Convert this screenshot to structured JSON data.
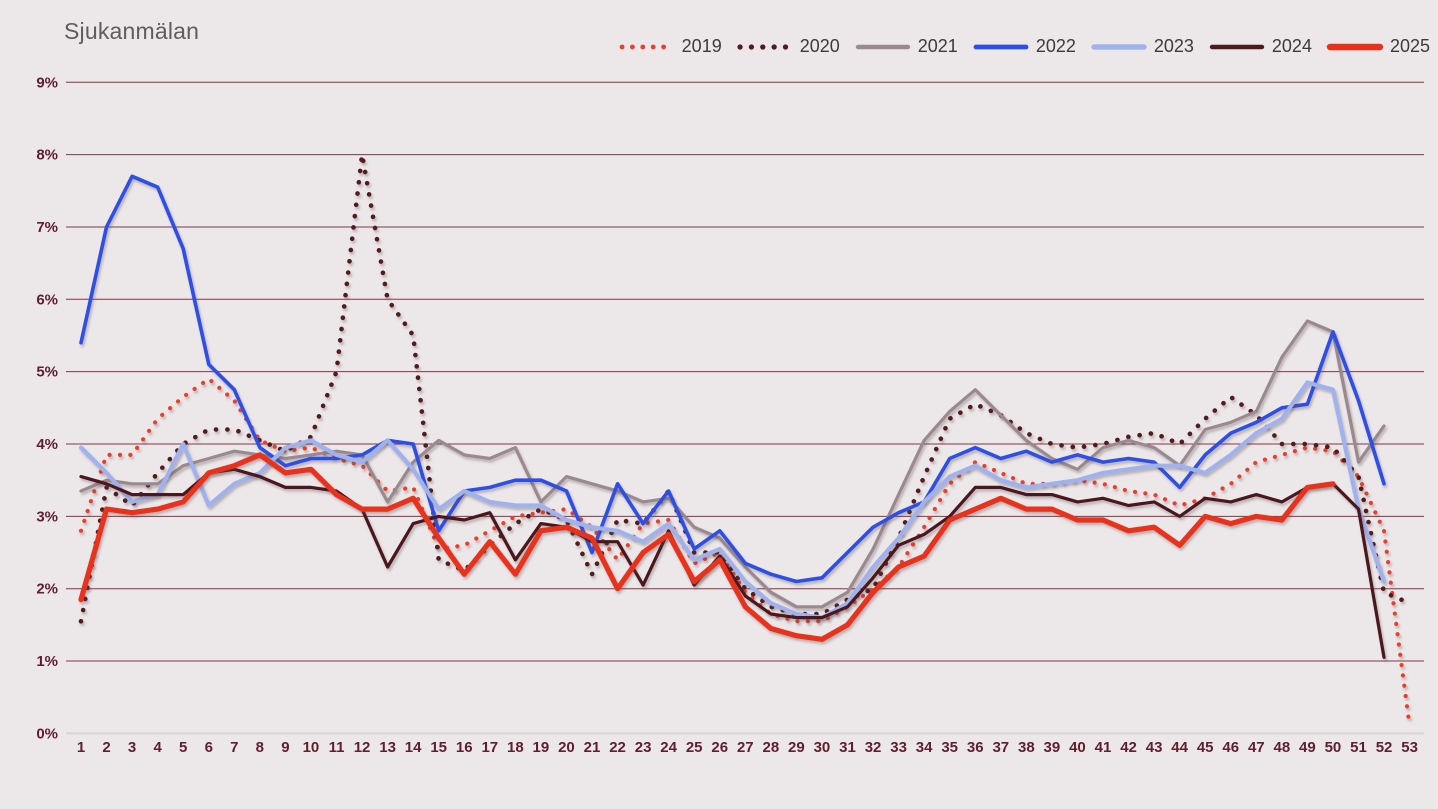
{
  "title": "Sjukanmälan",
  "legend": [
    {
      "label": "2019",
      "color": "#e8402f",
      "style": "dotted",
      "width": 4.2
    },
    {
      "label": "2020",
      "color": "#531a1f",
      "style": "dotted",
      "width": 4.6
    },
    {
      "label": "2021",
      "color": "#9a8a90",
      "style": "solid",
      "width": 3.2
    },
    {
      "label": "2022",
      "color": "#2e4fe6",
      "style": "solid",
      "width": 3.6
    },
    {
      "label": "2023",
      "color": "#a0b2ee",
      "style": "solid",
      "width": 4.2
    },
    {
      "label": "2024",
      "color": "#4c191d",
      "style": "solid",
      "width": 3.2
    },
    {
      "label": "2025",
      "color": "#e8311c",
      "style": "solid",
      "width": 5.2
    }
  ],
  "chart_data": {
    "type": "line",
    "title": "Sjukanmälan",
    "xlabel": "",
    "ylabel": "",
    "grid": true,
    "legend_position": "top-right",
    "ylim": [
      0,
      9
    ],
    "y_tick_labels": [
      "0%",
      "1%",
      "2%",
      "3%",
      "4%",
      "5%",
      "6%",
      "7%",
      "8%",
      "9%"
    ],
    "x_tick_labels": [
      "1",
      "2",
      "3",
      "4",
      "5",
      "6",
      "7",
      "8",
      "9",
      "10",
      "11",
      "12",
      "13",
      "14",
      "15",
      "16",
      "17",
      "18",
      "19",
      "20",
      "21",
      "22",
      "23",
      "24",
      "25",
      "26",
      "27",
      "28",
      "29",
      "30",
      "31",
      "32",
      "33",
      "34",
      "35",
      "36",
      "37",
      "38",
      "39",
      "40",
      "41",
      "42",
      "43",
      "44",
      "45",
      "46",
      "47",
      "48",
      "49",
      "50",
      "51",
      "52",
      "53"
    ],
    "x_unit": "week",
    "series": [
      {
        "name": "2019",
        "style": "dotted",
        "color": "#e8402f",
        "width": 4.2,
        "values": [
          2.8,
          3.85,
          3.85,
          4.35,
          4.65,
          4.9,
          4.6,
          4.05,
          3.9,
          3.95,
          3.8,
          3.7,
          3.35,
          3.4,
          2.55,
          2.6,
          2.8,
          3.0,
          3.05,
          3.1,
          2.85,
          2.4,
          2.9,
          2.95,
          2.35,
          2.5,
          1.95,
          1.65,
          1.55,
          1.55,
          1.75,
          2.0,
          2.3,
          2.85,
          3.45,
          3.75,
          3.6,
          3.45,
          3.45,
          3.5,
          3.45,
          3.35,
          3.3,
          3.15,
          3.25,
          3.45,
          3.75,
          3.85,
          3.95,
          3.9,
          3.55,
          2.8,
          0.1
        ]
      },
      {
        "name": "2020",
        "style": "dotted",
        "color": "#531a1f",
        "width": 4.6,
        "values": [
          1.55,
          3.4,
          3.15,
          3.6,
          4.0,
          4.2,
          4.2,
          4.05,
          3.9,
          4.1,
          5.0,
          8.0,
          6.0,
          5.5,
          2.4,
          2.25,
          2.6,
          2.9,
          3.1,
          2.95,
          2.2,
          2.95,
          2.9,
          3.35,
          2.5,
          2.5,
          2.0,
          1.75,
          1.65,
          1.65,
          1.85,
          2.0,
          2.7,
          3.55,
          4.35,
          4.55,
          4.4,
          4.15,
          4.0,
          3.95,
          4.0,
          4.1,
          4.15,
          4.0,
          4.35,
          4.65,
          4.4,
          4.0,
          4.0,
          3.95,
          3.55,
          1.95,
          1.8
        ]
      },
      {
        "name": "2021",
        "style": "solid",
        "color": "#9a8a90",
        "width": 3.2,
        "values": [
          3.35,
          3.5,
          3.45,
          3.45,
          3.7,
          3.8,
          3.9,
          3.85,
          3.8,
          3.85,
          3.9,
          3.85,
          3.2,
          3.75,
          4.05,
          3.85,
          3.8,
          3.95,
          3.2,
          3.55,
          3.45,
          3.35,
          3.2,
          3.25,
          2.85,
          2.7,
          2.3,
          1.95,
          1.75,
          1.75,
          1.95,
          2.55,
          3.3,
          4.05,
          4.45,
          4.75,
          4.4,
          4.05,
          3.8,
          3.65,
          3.95,
          4.05,
          3.95,
          3.7,
          4.2,
          4.3,
          4.45,
          5.2,
          5.7,
          5.55,
          3.75,
          4.25,
          null
        ]
      },
      {
        "name": "2022",
        "style": "solid",
        "color": "#2e4fe6",
        "width": 3.6,
        "values": [
          5.4,
          7.0,
          7.7,
          7.55,
          6.7,
          5.1,
          4.75,
          3.95,
          3.7,
          3.8,
          3.8,
          3.85,
          4.05,
          4.0,
          2.8,
          3.35,
          3.4,
          3.5,
          3.5,
          3.35,
          2.5,
          3.45,
          2.9,
          3.35,
          2.55,
          2.8,
          2.35,
          2.2,
          2.1,
          2.15,
          2.5,
          2.85,
          3.05,
          3.2,
          3.8,
          3.95,
          3.8,
          3.9,
          3.75,
          3.85,
          3.75,
          3.8,
          3.75,
          3.4,
          3.85,
          4.15,
          4.3,
          4.5,
          4.55,
          5.55,
          4.6,
          3.45,
          null
        ]
      },
      {
        "name": "2023",
        "style": "solid",
        "color": "#a0b2ee",
        "width": 4.2,
        "values": [
          3.95,
          3.6,
          3.2,
          3.3,
          4.0,
          3.15,
          3.45,
          3.6,
          3.95,
          4.05,
          3.85,
          3.75,
          4.05,
          3.65,
          3.1,
          3.35,
          3.2,
          3.15,
          3.15,
          2.95,
          2.85,
          2.8,
          2.65,
          2.9,
          2.4,
          2.55,
          2.1,
          1.8,
          1.65,
          1.6,
          1.8,
          2.3,
          2.7,
          3.2,
          3.55,
          3.7,
          3.5,
          3.4,
          3.45,
          3.5,
          3.6,
          3.65,
          3.7,
          3.7,
          3.6,
          3.85,
          4.15,
          4.35,
          4.85,
          4.75,
          3.1,
          2.1,
          null
        ]
      },
      {
        "name": "2024",
        "style": "solid",
        "color": "#4c191d",
        "width": 3.2,
        "values": [
          3.55,
          3.45,
          3.3,
          3.3,
          3.3,
          3.6,
          3.65,
          3.55,
          3.4,
          3.4,
          3.35,
          3.1,
          2.3,
          2.9,
          3.0,
          2.95,
          3.05,
          2.4,
          2.9,
          2.85,
          2.65,
          2.65,
          2.05,
          2.8,
          2.05,
          2.45,
          1.9,
          1.65,
          1.6,
          1.6,
          1.75,
          2.15,
          2.6,
          2.75,
          3.0,
          3.4,
          3.4,
          3.3,
          3.3,
          3.2,
          3.25,
          3.15,
          3.2,
          3.0,
          3.25,
          3.2,
          3.3,
          3.2,
          3.4,
          3.45,
          3.1,
          1.05,
          null
        ]
      },
      {
        "name": "2025",
        "style": "solid",
        "color": "#e8311c",
        "width": 5.2,
        "values": [
          1.85,
          3.1,
          3.05,
          3.1,
          3.2,
          3.6,
          3.7,
          3.85,
          3.6,
          3.65,
          3.3,
          3.1,
          3.1,
          3.25,
          2.7,
          2.2,
          2.65,
          2.2,
          2.8,
          2.85,
          2.7,
          2.0,
          2.5,
          2.75,
          2.1,
          2.4,
          1.75,
          1.45,
          1.35,
          1.3,
          1.5,
          1.95,
          2.3,
          2.45,
          2.95,
          3.1,
          3.25,
          3.1,
          3.1,
          2.95,
          2.95,
          2.8,
          2.85,
          2.6,
          3.0,
          2.9,
          3.0,
          2.95,
          3.4,
          3.45,
          null,
          null,
          null
        ]
      }
    ]
  },
  "colors": {
    "background": "#ece7e9",
    "gridline": "#823744",
    "baseline": "#d9d4d6",
    "tick_label": "#5e1f2e",
    "title": "#5f5c5d",
    "legend_text": "#3c3a3b"
  }
}
